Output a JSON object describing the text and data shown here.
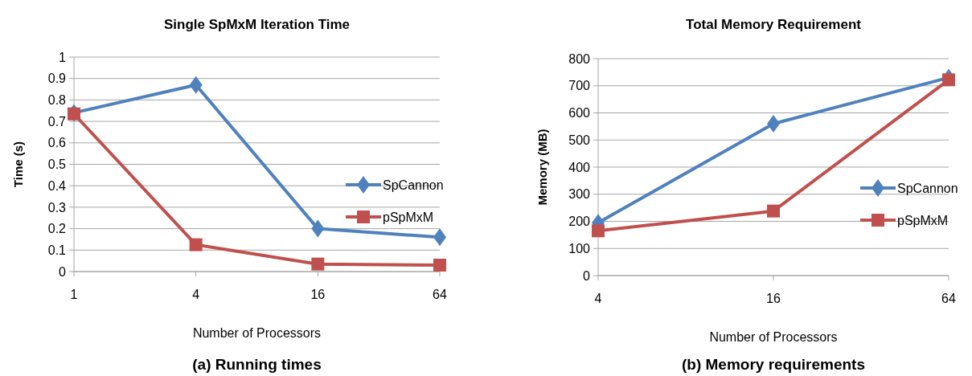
{
  "chart_data": [
    {
      "type": "line",
      "title": "Single SpMxM Iteration Time",
      "xlabel": "Number of Processors",
      "ylabel": "Time (s)",
      "categories": [
        "1",
        "4",
        "16",
        "64"
      ],
      "ylim": [
        0,
        1
      ],
      "yticks": [
        0,
        0.1,
        0.2,
        0.3,
        0.4,
        0.5,
        0.6,
        0.7,
        0.8,
        0.9,
        1
      ],
      "grid": "y",
      "legend": "right",
      "line_style": "solid",
      "annotations": [
        "(a) Running times"
      ],
      "series": [
        {
          "name": "SpCannon",
          "color": "#4f81bd",
          "marker": "diamond",
          "values": [
            0.74,
            0.87,
            0.2,
            0.16
          ]
        },
        {
          "name": "pSpMxM",
          "color": "#c0504d",
          "marker": "square",
          "values": [
            0.735,
            0.125,
            0.035,
            0.03
          ]
        }
      ]
    },
    {
      "type": "line",
      "title": "Total Memory Requirement",
      "xlabel": "Number of Processors",
      "ylabel": "Memory (MB)",
      "categories": [
        "4",
        "16",
        "64"
      ],
      "ylim": [
        0,
        800
      ],
      "yticks": [
        0,
        100,
        200,
        300,
        400,
        500,
        600,
        700,
        800
      ],
      "grid": "y",
      "legend": "right",
      "line_style": "solid",
      "annotations": [
        "(b) Memory requirements"
      ],
      "series": [
        {
          "name": "SpCannon",
          "color": "#4f81bd",
          "marker": "diamond",
          "values": [
            195,
            560,
            730
          ]
        },
        {
          "name": "pSpMxM",
          "color": "#c0504d",
          "marker": "square",
          "values": [
            165,
            238,
            722
          ]
        }
      ]
    }
  ]
}
